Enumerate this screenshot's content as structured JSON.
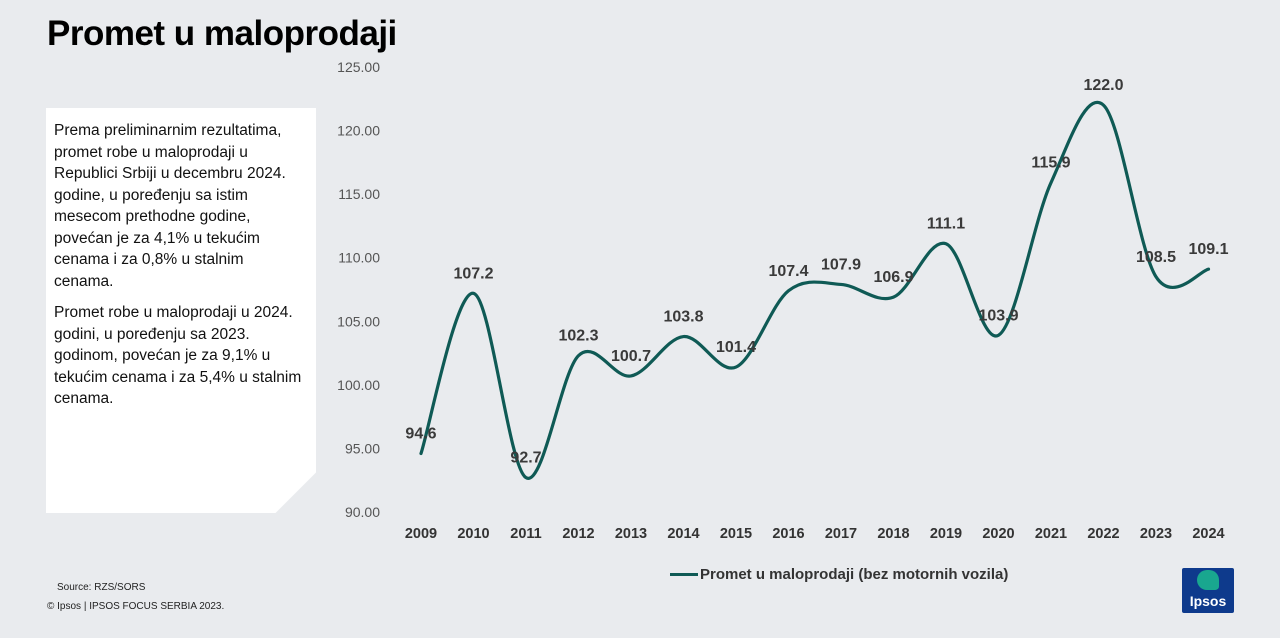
{
  "title": "Promet u maloprodaji",
  "info": {
    "paragraph1": "Prema preliminarnim rezultatima, promet robe u maloprodaji u Republici Srbiji u decembru 2024. godine, u poređenju sa istim mesecom prethodne godine, povećan je za 4,1% u tekućim cenama i za 0,8% u stalnim cenama.",
    "paragraph2": "Promet robe u maloprodaji u 2024. godini, u poređenju sa 2023. godinom, povećan je za 9,1% u tekućim cenama i za 5,4% u stalnim cenama."
  },
  "footer": {
    "source": "Source: RZS/SORS",
    "copyright": "© Ipsos | IPSOS FOCUS SERBIA 2023."
  },
  "logo": {
    "text": "Ipsos",
    "bg_color": "#0e3a8c",
    "mark_color": "#19a78f"
  },
  "chart_data": {
    "type": "line",
    "smooth": true,
    "x": [
      "2009",
      "2010",
      "2011",
      "2012",
      "2013",
      "2014",
      "2015",
      "2016",
      "2017",
      "2018",
      "2019",
      "2020",
      "2021",
      "2022",
      "2023",
      "2024"
    ],
    "series": [
      {
        "name": "Promet u maloprodaji (bez motornih vozila)",
        "color": "#0f5a55",
        "values": [
          94.6,
          107.2,
          92.7,
          102.3,
          100.7,
          103.8,
          101.4,
          107.4,
          107.9,
          106.9,
          111.1,
          103.9,
          115.9,
          122.0,
          108.5,
          109.1
        ],
        "labels": [
          "94.6",
          "107.2",
          "92.7",
          "102.3",
          "100.7",
          "103.8",
          "101.4",
          "107.4",
          "107.9",
          "106.9",
          "111.1",
          "103.9",
          "115.9",
          "122.0",
          "108.5",
          "109.1"
        ]
      }
    ],
    "ylim": [
      90,
      125
    ],
    "yticks": [
      "90.00",
      "95.00",
      "100.00",
      "105.00",
      "110.00",
      "115.00",
      "120.00",
      "125.00"
    ],
    "grid": false,
    "legend_position": "bottom"
  }
}
